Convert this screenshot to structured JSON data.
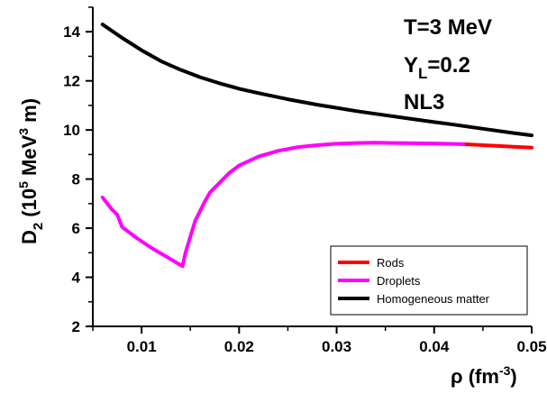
{
  "chart_data": {
    "type": "line",
    "xlabel": {
      "base": "ρ (fm",
      "sup": "-3",
      "tail": ")"
    },
    "ylabel": {
      "base": "D",
      "sub": "2",
      "mid": " (10",
      "sup1": "5",
      "mid2": " MeV",
      "sup2": "3",
      "tail": " m)"
    },
    "xlim": [
      0.005,
      0.05
    ],
    "ylim": [
      2,
      15
    ],
    "x_ticks": [
      "0.01",
      "0.02",
      "0.03",
      "0.04",
      "0.05"
    ],
    "y_ticks": [
      "2",
      "4",
      "6",
      "8",
      "10",
      "12",
      "14"
    ],
    "annotations": {
      "temperature": "T=3 MeV",
      "yl_base": "Y",
      "yl_sub": "L",
      "yl_value": "=0.2",
      "model": "NL3"
    },
    "legend_position": "bottom-right",
    "series": [
      {
        "name": "Rods",
        "color": "#ff0000",
        "x": [
          0.043,
          0.045,
          0.047,
          0.049,
          0.05
        ],
        "y": [
          9.42,
          9.38,
          9.34,
          9.3,
          9.28
        ]
      },
      {
        "name": "Droplets",
        "color": "#ff00ff",
        "x": [
          0.006,
          0.007,
          0.0075,
          0.008,
          0.0085,
          0.0095,
          0.011,
          0.0125,
          0.0142,
          0.0145,
          0.0155,
          0.0165,
          0.017,
          0.018,
          0.019,
          0.02,
          0.022,
          0.024,
          0.026,
          0.028,
          0.03,
          0.032,
          0.034,
          0.036,
          0.038,
          0.04,
          0.043
        ],
        "y": [
          7.25,
          6.75,
          6.55,
          6.05,
          5.9,
          5.6,
          5.2,
          4.85,
          4.45,
          5.0,
          6.3,
          7.1,
          7.45,
          7.85,
          8.25,
          8.55,
          8.92,
          9.15,
          9.3,
          9.38,
          9.44,
          9.47,
          9.48,
          9.47,
          9.46,
          9.45,
          9.42
        ]
      },
      {
        "name": "Homogeneous matter",
        "color": "#000000",
        "x": [
          0.006,
          0.008,
          0.01,
          0.012,
          0.014,
          0.016,
          0.018,
          0.02,
          0.022,
          0.025,
          0.028,
          0.03,
          0.032,
          0.035,
          0.038,
          0.04,
          0.042,
          0.045,
          0.048,
          0.05
        ],
        "y": [
          14.3,
          13.75,
          13.25,
          12.8,
          12.45,
          12.15,
          11.9,
          11.68,
          11.5,
          11.25,
          11.03,
          10.9,
          10.77,
          10.6,
          10.43,
          10.32,
          10.22,
          10.05,
          9.88,
          9.78
        ]
      }
    ]
  }
}
